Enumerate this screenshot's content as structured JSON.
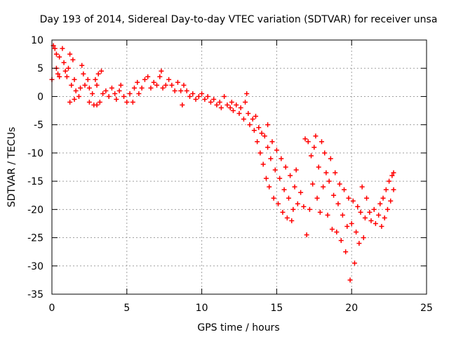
{
  "chart_data": {
    "type": "scatter",
    "title": "Day 193 of 2014, Sidereal Day-to-day VTEC variation (SDTVAR) for receiver unsa",
    "xlabel": "GPS time / hours",
    "ylabel": "SDTVAR / TECUs",
    "xlim": [
      0,
      25
    ],
    "ylim": [
      -35,
      10
    ],
    "xticks": [
      0,
      5,
      10,
      15,
      20,
      25
    ],
    "yticks": [
      10,
      5,
      0,
      -5,
      -10,
      -15,
      -20,
      -25,
      -30,
      -35
    ],
    "grid": true,
    "marker": "+",
    "color": "#ff0000",
    "series": [
      {
        "name": "SDTVAR",
        "points": [
          [
            0.0,
            3.0
          ],
          [
            0.1,
            9.0
          ],
          [
            0.2,
            8.5
          ],
          [
            0.3,
            7.5
          ],
          [
            0.3,
            5.0
          ],
          [
            0.4,
            4.0
          ],
          [
            0.5,
            3.5
          ],
          [
            0.5,
            7.0
          ],
          [
            0.7,
            8.5
          ],
          [
            0.8,
            6.0
          ],
          [
            0.9,
            4.5
          ],
          [
            1.0,
            3.5
          ],
          [
            1.1,
            5.0
          ],
          [
            1.2,
            7.5
          ],
          [
            1.3,
            2.0
          ],
          [
            1.4,
            6.5
          ],
          [
            1.5,
            3.0
          ],
          [
            1.6,
            1.0
          ],
          [
            1.2,
            -1.0
          ],
          [
            1.5,
            -0.5
          ],
          [
            1.8,
            0.0
          ],
          [
            1.9,
            1.5
          ],
          [
            2.0,
            5.5
          ],
          [
            2.1,
            4.0
          ],
          [
            2.2,
            2.0
          ],
          [
            2.4,
            3.0
          ],
          [
            2.5,
            1.5
          ],
          [
            2.7,
            0.5
          ],
          [
            2.5,
            -1.0
          ],
          [
            2.8,
            -1.5
          ],
          [
            2.9,
            3.0
          ],
          [
            3.0,
            2.0
          ],
          [
            3.1,
            4.0
          ],
          [
            3.3,
            4.5
          ],
          [
            3.4,
            0.5
          ],
          [
            3.0,
            -1.5
          ],
          [
            3.2,
            -1.0
          ],
          [
            3.6,
            1.0
          ],
          [
            3.8,
            0.0
          ],
          [
            4.0,
            1.5
          ],
          [
            4.2,
            0.5
          ],
          [
            4.3,
            -0.5
          ],
          [
            4.5,
            1.0
          ],
          [
            4.6,
            2.0
          ],
          [
            4.8,
            0.0
          ],
          [
            5.0,
            -1.0
          ],
          [
            5.2,
            0.5
          ],
          [
            5.4,
            -1.0
          ],
          [
            5.5,
            1.5
          ],
          [
            5.7,
            2.5
          ],
          [
            5.8,
            0.5
          ],
          [
            6.0,
            1.5
          ],
          [
            6.2,
            3.0
          ],
          [
            6.4,
            3.5
          ],
          [
            6.6,
            1.5
          ],
          [
            6.8,
            2.5
          ],
          [
            7.0,
            2.0
          ],
          [
            7.2,
            3.5
          ],
          [
            7.3,
            4.5
          ],
          [
            7.4,
            1.5
          ],
          [
            7.6,
            2.0
          ],
          [
            7.8,
            3.0
          ],
          [
            8.0,
            2.0
          ],
          [
            8.2,
            1.0
          ],
          [
            8.4,
            2.5
          ],
          [
            8.6,
            1.0
          ],
          [
            8.8,
            2.0
          ],
          [
            8.7,
            -1.5
          ],
          [
            9.0,
            1.0
          ],
          [
            9.2,
            0.0
          ],
          [
            9.4,
            0.5
          ],
          [
            9.6,
            -0.5
          ],
          [
            9.8,
            0.0
          ],
          [
            10.0,
            0.5
          ],
          [
            10.2,
            -0.5
          ],
          [
            10.4,
            0.0
          ],
          [
            10.6,
            -1.0
          ],
          [
            10.8,
            -0.5
          ],
          [
            11.0,
            -1.5
          ],
          [
            11.2,
            -1.0
          ],
          [
            11.3,
            -2.0
          ],
          [
            11.5,
            0.0
          ],
          [
            11.7,
            -1.5
          ],
          [
            11.9,
            -2.0
          ],
          [
            12.0,
            -1.0
          ],
          [
            12.1,
            -2.5
          ],
          [
            12.3,
            -1.5
          ],
          [
            12.5,
            -3.0
          ],
          [
            12.6,
            -2.0
          ],
          [
            12.8,
            -4.0
          ],
          [
            12.9,
            -1.0
          ],
          [
            13.0,
            0.5
          ],
          [
            13.1,
            -3.0
          ],
          [
            13.2,
            -5.0
          ],
          [
            13.4,
            -4.0
          ],
          [
            13.5,
            -6.0
          ],
          [
            13.6,
            -3.5
          ],
          [
            13.7,
            -8.0
          ],
          [
            13.8,
            -5.5
          ],
          [
            13.9,
            -10.0
          ],
          [
            14.0,
            -6.5
          ],
          [
            14.1,
            -12.0
          ],
          [
            14.2,
            -7.0
          ],
          [
            14.3,
            -14.5
          ],
          [
            14.4,
            -9.0
          ],
          [
            14.4,
            -5.0
          ],
          [
            14.5,
            -16.0
          ],
          [
            14.6,
            -11.0
          ],
          [
            14.7,
            -8.0
          ],
          [
            14.8,
            -18.0
          ],
          [
            14.9,
            -13.0
          ],
          [
            15.0,
            -9.5
          ],
          [
            15.1,
            -19.0
          ],
          [
            15.2,
            -14.5
          ],
          [
            15.3,
            -11.0
          ],
          [
            15.4,
            -20.5
          ],
          [
            15.5,
            -16.5
          ],
          [
            15.6,
            -12.5
          ],
          [
            15.7,
            -21.5
          ],
          [
            15.8,
            -18.0
          ],
          [
            15.9,
            -14.0
          ],
          [
            16.0,
            -22.0
          ],
          [
            16.1,
            -20.0
          ],
          [
            16.2,
            -16.0
          ],
          [
            16.3,
            -13.0
          ],
          [
            16.4,
            -19.0
          ],
          [
            16.6,
            -17.0
          ],
          [
            16.8,
            -19.5
          ],
          [
            16.9,
            -7.5
          ],
          [
            17.0,
            -24.5
          ],
          [
            17.1,
            -8.0
          ],
          [
            17.2,
            -20.0
          ],
          [
            17.3,
            -10.5
          ],
          [
            17.4,
            -15.5
          ],
          [
            17.5,
            -9.0
          ],
          [
            17.6,
            -7.0
          ],
          [
            17.7,
            -18.0
          ],
          [
            17.8,
            -12.5
          ],
          [
            17.9,
            -20.5
          ],
          [
            18.0,
            -8.0
          ],
          [
            18.1,
            -16.0
          ],
          [
            18.2,
            -10.0
          ],
          [
            18.3,
            -13.5
          ],
          [
            18.4,
            -21.0
          ],
          [
            18.5,
            -15.0
          ],
          [
            18.6,
            -11.0
          ],
          [
            18.7,
            -23.5
          ],
          [
            18.8,
            -17.5
          ],
          [
            18.9,
            -13.5
          ],
          [
            19.0,
            -24.0
          ],
          [
            19.1,
            -19.0
          ],
          [
            19.2,
            -15.5
          ],
          [
            19.3,
            -25.5
          ],
          [
            19.4,
            -21.0
          ],
          [
            19.5,
            -16.5
          ],
          [
            19.6,
            -27.5
          ],
          [
            19.7,
            -23.0
          ],
          [
            19.8,
            -18.0
          ],
          [
            19.9,
            -32.5
          ],
          [
            20.0,
            -22.5
          ],
          [
            20.1,
            -18.5
          ],
          [
            20.2,
            -29.5
          ],
          [
            20.3,
            -24.0
          ],
          [
            20.4,
            -19.5
          ],
          [
            20.5,
            -26.0
          ],
          [
            20.6,
            -20.5
          ],
          [
            20.7,
            -16.0
          ],
          [
            20.8,
            -25.0
          ],
          [
            20.9,
            -21.5
          ],
          [
            21.0,
            -18.0
          ],
          [
            21.2,
            -20.5
          ],
          [
            21.3,
            -22.0
          ],
          [
            21.5,
            -20.0
          ],
          [
            21.6,
            -22.5
          ],
          [
            21.8,
            -21.0
          ],
          [
            21.9,
            -19.0
          ],
          [
            22.0,
            -23.0
          ],
          [
            22.1,
            -18.0
          ],
          [
            22.2,
            -21.5
          ],
          [
            22.3,
            -16.5
          ],
          [
            22.4,
            -20.0
          ],
          [
            22.5,
            -15.0
          ],
          [
            22.6,
            -18.5
          ],
          [
            22.7,
            -14.0
          ],
          [
            22.8,
            -16.5
          ],
          [
            22.8,
            -13.5
          ]
        ]
      }
    ]
  }
}
